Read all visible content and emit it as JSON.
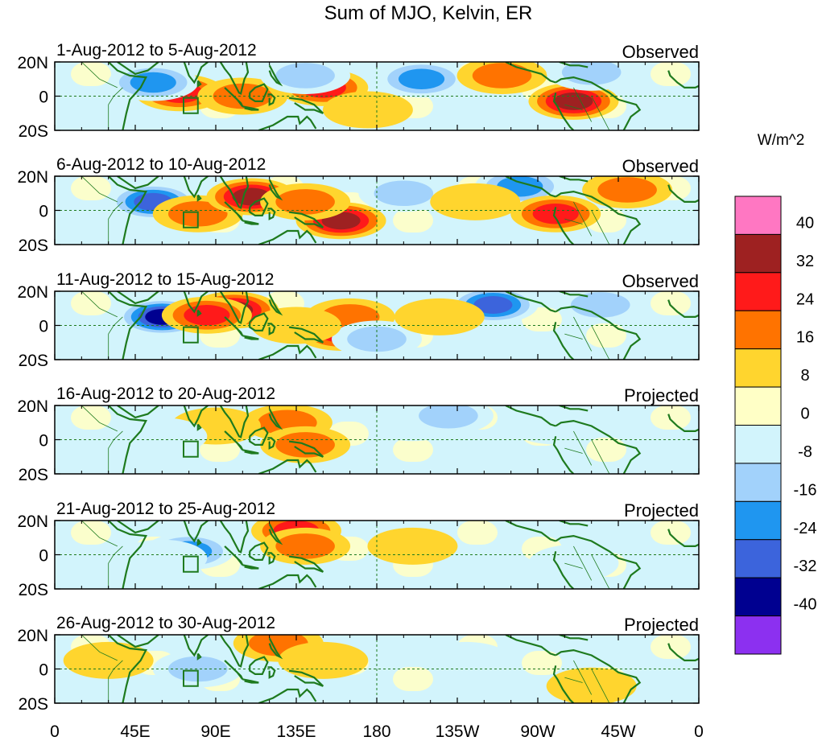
{
  "title": "Sum of MJO, Kelvin, ER",
  "lat_labels": [
    "20N",
    "0",
    "20S"
  ],
  "lon_labels": [
    "0",
    "45E",
    "90E",
    "135E",
    "180",
    "135W",
    "90W",
    "45W",
    "0"
  ],
  "panels": [
    {
      "date_range": "1-Aug-2012 to 5-Aug-2012",
      "status": "Observed",
      "blobs": [
        {
          "lon": 70,
          "lat": 2,
          "value": 24
        },
        {
          "lon": 55,
          "lat": 8,
          "value": -24
        },
        {
          "lon": 105,
          "lat": 0,
          "value": 16
        },
        {
          "lon": 150,
          "lat": 5,
          "value": 24
        },
        {
          "lon": 140,
          "lat": 12,
          "value": -16
        },
        {
          "lon": 205,
          "lat": 10,
          "value": -24
        },
        {
          "lon": 250,
          "lat": 12,
          "value": 16
        },
        {
          "lon": 290,
          "lat": -3,
          "value": 32
        },
        {
          "lon": 300,
          "lat": 14,
          "value": -16
        },
        {
          "lon": 175,
          "lat": -8,
          "value": 8
        }
      ]
    },
    {
      "date_range": "6-Aug-2012 to 10-Aug-2012",
      "status": "Observed",
      "blobs": [
        {
          "lon": 55,
          "lat": 5,
          "value": -32
        },
        {
          "lon": 80,
          "lat": -2,
          "value": 16
        },
        {
          "lon": 110,
          "lat": 8,
          "value": 32
        },
        {
          "lon": 160,
          "lat": -6,
          "value": 32
        },
        {
          "lon": 140,
          "lat": 5,
          "value": 16
        },
        {
          "lon": 195,
          "lat": 10,
          "value": -16
        },
        {
          "lon": 260,
          "lat": 14,
          "value": -24
        },
        {
          "lon": 280,
          "lat": -2,
          "value": 24
        },
        {
          "lon": 320,
          "lat": 12,
          "value": 16
        },
        {
          "lon": 235,
          "lat": 5,
          "value": 8
        }
      ]
    },
    {
      "date_range": "11-Aug-2012 to 15-Aug-2012",
      "status": "Observed",
      "blobs": [
        {
          "lon": 60,
          "lat": 5,
          "value": -40
        },
        {
          "lon": 100,
          "lat": 9,
          "value": 32
        },
        {
          "lon": 85,
          "lat": 6,
          "value": 24
        },
        {
          "lon": 160,
          "lat": -4,
          "value": 24
        },
        {
          "lon": 165,
          "lat": 5,
          "value": 16
        },
        {
          "lon": 180,
          "lat": -8,
          "value": -16
        },
        {
          "lon": 245,
          "lat": 12,
          "value": -32
        },
        {
          "lon": 215,
          "lat": 5,
          "value": 8
        },
        {
          "lon": 305,
          "lat": 12,
          "value": -16
        },
        {
          "lon": 135,
          "lat": 0,
          "value": 8
        }
      ]
    },
    {
      "date_range": "16-Aug-2012 to 20-Aug-2012",
      "status": "Projected",
      "blobs": [
        {
          "lon": 130,
          "lat": 10,
          "value": 16
        },
        {
          "lon": 140,
          "lat": -3,
          "value": 16
        },
        {
          "lon": 90,
          "lat": 8,
          "value": 8
        },
        {
          "lon": 60,
          "lat": 2,
          "value": -8
        },
        {
          "lon": 200,
          "lat": 10,
          "value": -8
        },
        {
          "lon": 220,
          "lat": 14,
          "value": -16
        },
        {
          "lon": 280,
          "lat": 8,
          "value": -8
        }
      ]
    },
    {
      "date_range": "21-Aug-2012 to 25-Aug-2012",
      "status": "Projected",
      "blobs": [
        {
          "lon": 75,
          "lat": 2,
          "value": -24
        },
        {
          "lon": 135,
          "lat": 14,
          "value": 24
        },
        {
          "lon": 140,
          "lat": 5,
          "value": 16
        },
        {
          "lon": 60,
          "lat": -2,
          "value": -8
        },
        {
          "lon": 200,
          "lat": 5,
          "value": 8
        },
        {
          "lon": 290,
          "lat": -5,
          "value": -8
        }
      ]
    },
    {
      "date_range": "26-Aug-2012 to 30-Aug-2012",
      "status": "Projected",
      "blobs": [
        {
          "lon": 80,
          "lat": 0,
          "value": -16
        },
        {
          "lon": 125,
          "lat": 15,
          "value": 16
        },
        {
          "lon": 150,
          "lat": 5,
          "value": 8
        },
        {
          "lon": 30,
          "lat": 5,
          "value": 8
        },
        {
          "lon": 230,
          "lat": 5,
          "value": -8
        },
        {
          "lon": 300,
          "lat": -10,
          "value": 8
        }
      ]
    }
  ],
  "colorbar": {
    "unit": "W/m^2",
    "labels": [
      "40",
      "32",
      "24",
      "16",
      "8",
      "0",
      "-8",
      "-16",
      "-24",
      "-32",
      "-40"
    ],
    "colors": [
      "#ff77c2",
      "#9e2121",
      "#ff1a1a",
      "#ff7300",
      "#ffd52e",
      "#ffffc6",
      "#d2f4fc",
      "#a2d2fb",
      "#1f96f0",
      "#3c64dc",
      "#000090",
      "#8c30f0"
    ]
  },
  "colors": {
    "coast": "#1e7a1e",
    "dashed_line": "#1e7a1e",
    "box": "#1e7a1e"
  }
}
